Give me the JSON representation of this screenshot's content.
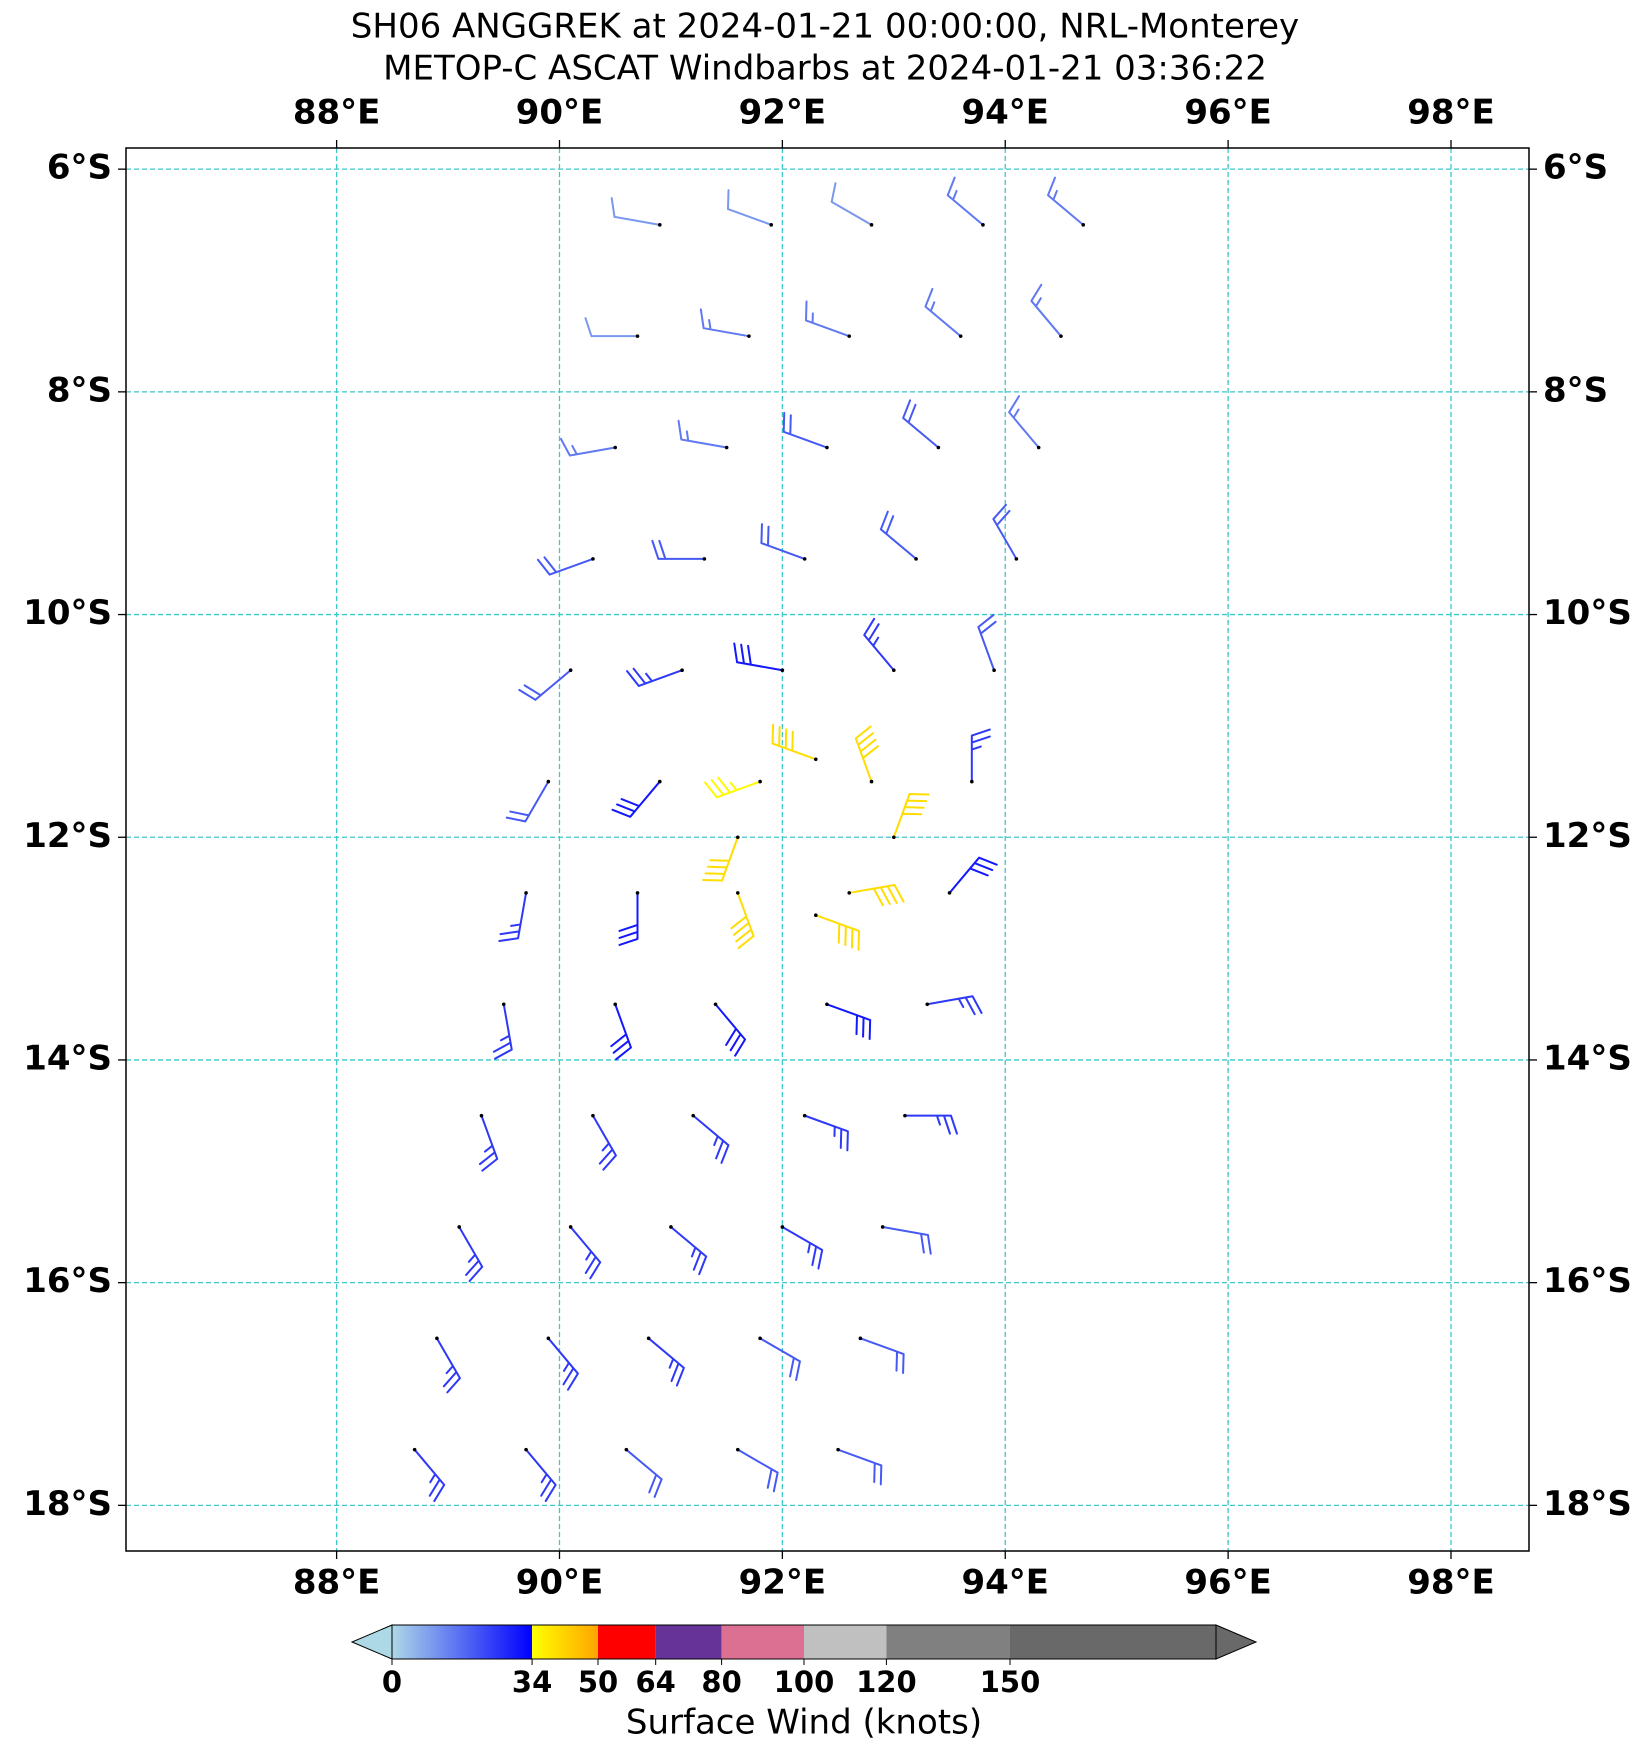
{
  "chart_data": {
    "type": "barbs",
    "title": "SH06 ANGGREK at 2024-01-21 00:00:00, NRL-Monterey",
    "subtitle": "METOP-C ASCAT Windbarbs at 2024-01-21 03:36:22",
    "xlim": [
      86.11,
      98.7
    ],
    "ylim": [
      -18.41,
      -5.81
    ],
    "xticks": [
      {
        "value": 88,
        "label": "88°E"
      },
      {
        "value": 90,
        "label": "90°E"
      },
      {
        "value": 92,
        "label": "92°E"
      },
      {
        "value": 94,
        "label": "94°E"
      },
      {
        "value": 96,
        "label": "96°E"
      },
      {
        "value": 98,
        "label": "98°E"
      }
    ],
    "yticks": [
      {
        "value": -6,
        "label": "6°S"
      },
      {
        "value": -8,
        "label": "8°S"
      },
      {
        "value": -10,
        "label": "10°S"
      },
      {
        "value": -12,
        "label": "12°S"
      },
      {
        "value": -14,
        "label": "14°S"
      },
      {
        "value": -16,
        "label": "16°S"
      },
      {
        "value": -18,
        "label": "18°S"
      }
    ],
    "grid": true,
    "grid_color": "#3cc8c8",
    "barbs": {
      "lon": [
        90.9,
        91.9,
        92.8,
        93.8,
        94.7,
        90.7,
        91.7,
        92.6,
        93.6,
        94.5,
        90.5,
        91.5,
        92.4,
        93.4,
        94.3,
        90.3,
        91.3,
        92.2,
        93.2,
        94.1,
        90.1,
        91.1,
        92.0,
        93.0,
        93.9,
        89.9,
        90.9,
        91.8,
        92.8,
        93.7,
        89.7,
        90.7,
        91.6,
        92.6,
        93.5,
        89.5,
        90.5,
        91.4,
        92.4,
        93.3,
        89.3,
        90.3,
        91.2,
        92.2,
        93.1,
        89.1,
        90.1,
        91.0,
        92.0,
        92.9,
        88.9,
        89.9,
        90.8,
        91.8,
        92.7,
        88.7,
        89.7,
        90.6,
        91.6,
        92.5,
        92.3,
        93.0,
        92.3,
        91.6
      ],
      "lat": [
        -6.5,
        -6.5,
        -6.5,
        -6.5,
        -6.5,
        -7.5,
        -7.5,
        -7.5,
        -7.5,
        -7.5,
        -8.5,
        -8.5,
        -8.5,
        -8.5,
        -8.5,
        -9.5,
        -9.5,
        -9.5,
        -9.5,
        -9.5,
        -10.5,
        -10.5,
        -10.5,
        -10.5,
        -10.5,
        -11.5,
        -11.5,
        -11.5,
        -11.5,
        -11.5,
        -12.5,
        -12.5,
        -12.5,
        -12.5,
        -12.5,
        -13.5,
        -13.5,
        -13.5,
        -13.5,
        -13.5,
        -14.5,
        -14.5,
        -14.5,
        -14.5,
        -14.5,
        -15.5,
        -15.5,
        -15.5,
        -15.5,
        -15.5,
        -16.5,
        -16.5,
        -16.5,
        -16.5,
        -16.5,
        -17.5,
        -17.5,
        -17.5,
        -17.5,
        -17.5,
        -11.3,
        -12.0,
        -12.7,
        -12.0
      ],
      "speed": [
        10,
        10,
        10,
        15,
        15,
        10,
        15,
        15,
        15,
        15,
        15,
        15,
        20,
        20,
        15,
        20,
        20,
        20,
        20,
        20,
        20,
        25,
        30,
        25,
        20,
        20,
        30,
        35,
        40,
        25,
        25,
        30,
        40,
        40,
        30,
        25,
        30,
        30,
        30,
        25,
        25,
        25,
        25,
        25,
        25,
        25,
        25,
        25,
        25,
        20,
        25,
        25,
        25,
        20,
        20,
        25,
        25,
        20,
        20,
        20,
        40,
        40,
        40,
        40
      ],
      "direction": [
        280,
        290,
        300,
        310,
        310,
        270,
        280,
        290,
        310,
        320,
        260,
        280,
        290,
        310,
        320,
        250,
        270,
        290,
        310,
        330,
        230,
        250,
        280,
        320,
        340,
        210,
        220,
        250,
        340,
        0,
        190,
        180,
        160,
        80,
        40,
        170,
        160,
        140,
        110,
        80,
        160,
        150,
        130,
        110,
        90,
        150,
        140,
        130,
        120,
        100,
        150,
        140,
        130,
        120,
        110,
        140,
        140,
        130,
        120,
        110,
        290,
        20,
        110,
        200
      ]
    },
    "colorbar": {
      "label": "Surface Wind (knots)",
      "lim": [
        0,
        200
      ],
      "ticks": [
        0,
        34,
        50,
        64,
        80,
        100,
        120,
        150
      ],
      "colors": [
        [
          "#add8e6",
          "#0000ff"
        ],
        [
          "#ffff00",
          "#ffa500"
        ],
        [
          "#ff0000",
          "#ff0000"
        ],
        [
          "#663399",
          "#663399"
        ],
        [
          "#db7093",
          "#db7093"
        ],
        [
          "#c0c0c0",
          "#c0c0c0"
        ],
        [
          "#808080",
          "#808080"
        ],
        [
          "#696969",
          "#696969"
        ]
      ]
    }
  }
}
